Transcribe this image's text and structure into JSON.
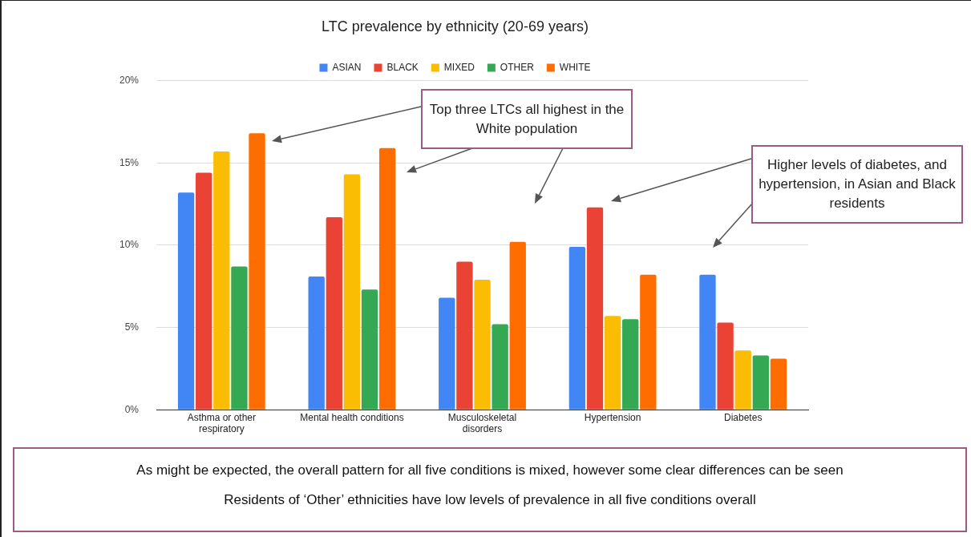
{
  "chart_data": {
    "type": "bar",
    "title": "LTC prevalence by ethnicity (20-69 years)",
    "categories": [
      "Asthma or other respiratory",
      "Mental health conditions",
      "Musculoskeletal disorders",
      "Hypertension",
      "Diabetes"
    ],
    "series": [
      {
        "name": "ASIAN",
        "color": "#4285f4",
        "values": [
          13.2,
          8.1,
          6.8,
          9.9,
          8.2
        ]
      },
      {
        "name": "BLACK",
        "color": "#ea4335",
        "values": [
          14.4,
          11.7,
          9.0,
          12.3,
          5.3
        ]
      },
      {
        "name": "MIXED",
        "color": "#fbbc04",
        "values": [
          15.7,
          14.3,
          7.9,
          5.7,
          3.6
        ]
      },
      {
        "name": "OTHER",
        "color": "#34a853",
        "values": [
          8.7,
          7.3,
          5.2,
          5.5,
          3.3
        ]
      },
      {
        "name": "WHITE",
        "color": "#ff6d01",
        "values": [
          16.8,
          15.9,
          10.2,
          8.2,
          3.1
        ]
      }
    ],
    "ylim": [
      0,
      20
    ],
    "yticks": [
      {
        "value": 0,
        "label": "0%"
      },
      {
        "value": 5,
        "label": "5%"
      },
      {
        "value": 10,
        "label": "10%"
      },
      {
        "value": 15,
        "label": "15%"
      },
      {
        "value": 20,
        "label": "20%"
      }
    ],
    "grid": "y",
    "legend": "top",
    "annotations": [
      "Top three LTCs all highest in the White population",
      "Higher levels of diabetes, and hypertension, in Asian and Black residents",
      "As might be expected, the overall pattern for all five conditions is mixed, however some clear differences can be seen",
      "Residents of ‘Other’ ethnicities have low levels of prevalence in all five conditions overall"
    ]
  }
}
